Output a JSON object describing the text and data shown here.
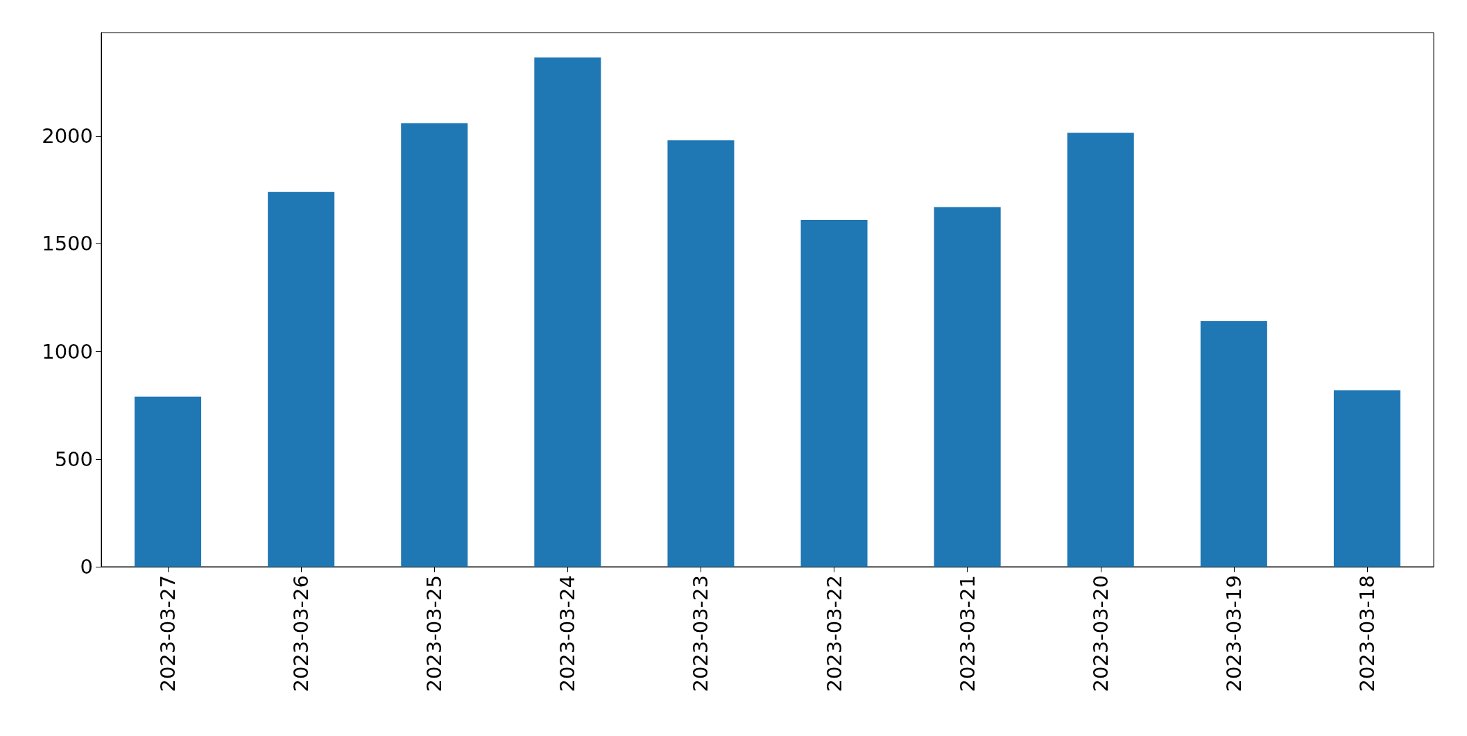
{
  "chart_data": {
    "type": "bar",
    "categories": [
      "2023-03-27",
      "2023-03-26",
      "2023-03-25",
      "2023-03-24",
      "2023-03-23",
      "2023-03-22",
      "2023-03-21",
      "2023-03-20",
      "2023-03-19",
      "2023-03-18"
    ],
    "values": [
      790,
      1740,
      2060,
      2365,
      1980,
      1610,
      1670,
      2015,
      1140,
      820
    ],
    "color": "#1f77b4",
    "ylim": [
      0,
      2480
    ],
    "yticks": [
      0,
      500,
      1000,
      1500,
      2000
    ],
    "grid": false
  }
}
